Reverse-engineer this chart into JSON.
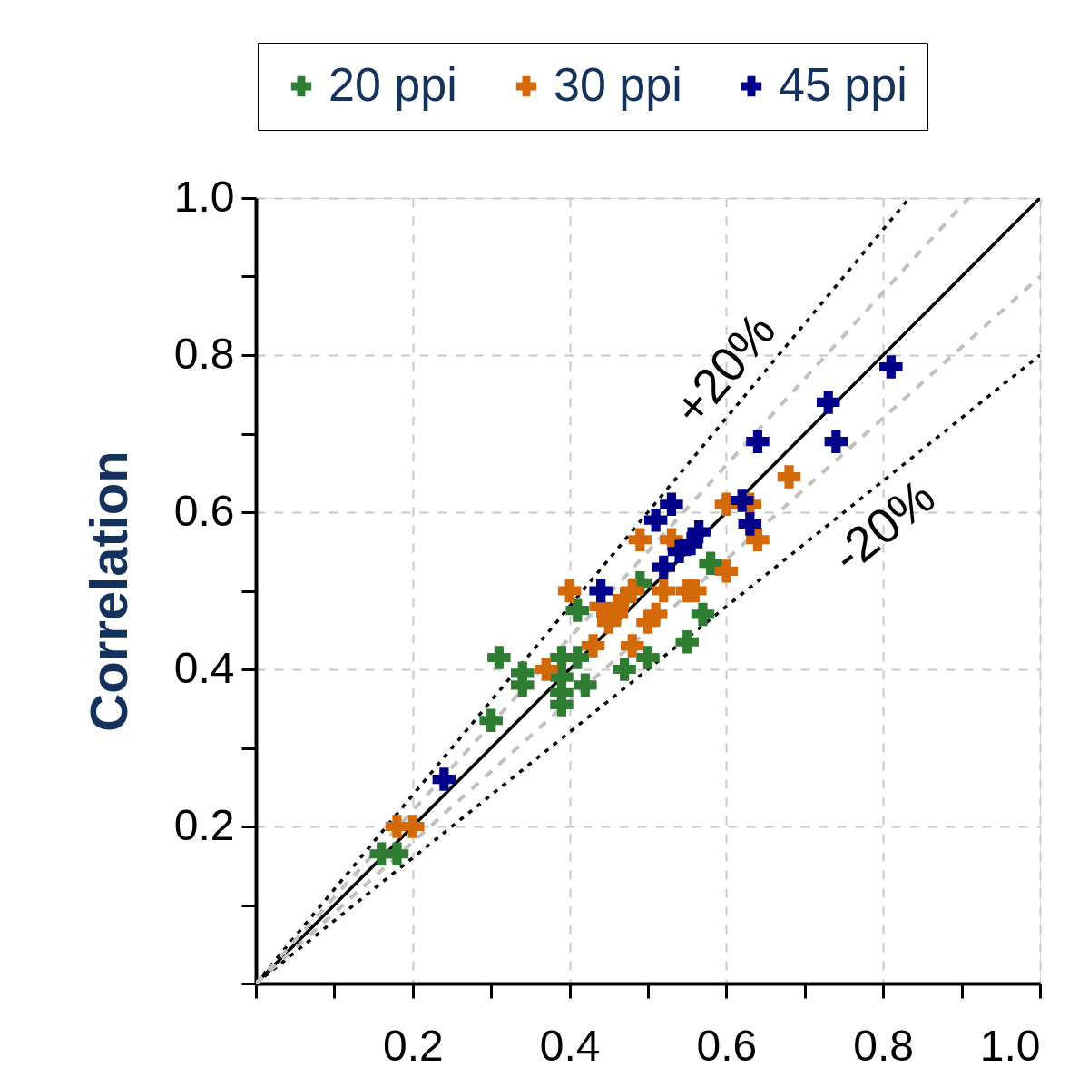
{
  "chart_data": {
    "type": "scatter",
    "ylabel": "Correlation",
    "legend": "top",
    "marker": "cross",
    "grid": true,
    "xlim": [
      0,
      1
    ],
    "ylim": [
      0,
      1
    ],
    "xticks": [
      {
        "value": 0,
        "label": null
      },
      {
        "value": 0.1,
        "label": null
      },
      0.2,
      {
        "value": 0.3,
        "label": null
      },
      0.4,
      {
        "value": 0.5,
        "label": null
      },
      0.6,
      {
        "value": 0.7,
        "label": null
      },
      0.8,
      {
        "value": 0.9,
        "label": null
      },
      {
        "value": 1,
        "label": "1.0"
      }
    ],
    "yticks": [
      {
        "value": 0,
        "label": null
      },
      {
        "value": 0.1,
        "label": null
      },
      0.2,
      {
        "value": 0.3,
        "label": null
      },
      0.4,
      {
        "value": 0.5,
        "label": null
      },
      0.6,
      {
        "value": 0.7,
        "label": null
      },
      0.8,
      {
        "value": 0.9,
        "label": null
      },
      {
        "value": 1,
        "label": "1.0"
      }
    ],
    "series": [
      {
        "name": "20 ppi",
        "color": "#2e7d32",
        "x": [
          0.16,
          0.18,
          0.3,
          0.31,
          0.34,
          0.34,
          0.39,
          0.39,
          0.39,
          0.39,
          0.41,
          0.42,
          0.41,
          0.47,
          0.5,
          0.55,
          0.57,
          0.58,
          0.49
        ],
        "values": [
          0.165,
          0.165,
          0.335,
          0.415,
          0.395,
          0.38,
          0.415,
          0.39,
          0.37,
          0.355,
          0.415,
          0.38,
          0.475,
          0.4,
          0.415,
          0.435,
          0.47,
          0.535,
          0.51
        ]
      },
      {
        "name": "30 ppi",
        "color": "#d4690a",
        "x": [
          0.18,
          0.2,
          0.37,
          0.4,
          0.44,
          0.43,
          0.45,
          0.46,
          0.47,
          0.48,
          0.49,
          0.5,
          0.51,
          0.52,
          0.53,
          0.55,
          0.56,
          0.6,
          0.6,
          0.63,
          0.64,
          0.68,
          0.48
        ],
        "values": [
          0.2,
          0.2,
          0.4,
          0.5,
          0.48,
          0.43,
          0.46,
          0.47,
          0.49,
          0.43,
          0.565,
          0.46,
          0.47,
          0.5,
          0.565,
          0.5,
          0.5,
          0.525,
          0.61,
          0.61,
          0.565,
          0.645,
          0.5
        ]
      },
      {
        "name": "45 ppi",
        "color": "#00008b",
        "x": [
          0.24,
          0.44,
          0.51,
          0.53,
          0.52,
          0.54,
          0.555,
          0.565,
          0.62,
          0.63,
          0.64,
          0.73,
          0.74,
          0.81
        ],
        "values": [
          0.26,
          0.5,
          0.59,
          0.61,
          0.53,
          0.55,
          0.56,
          0.575,
          0.615,
          0.585,
          0.69,
          0.74,
          0.69,
          0.785
        ]
      },
      {
        "type": "line",
        "marker": "none",
        "color": "#000000",
        "line_style": "solid",
        "x": [
          0,
          1
        ],
        "values": [
          0,
          1
        ]
      },
      {
        "type": "line",
        "marker": "none",
        "color": "#000000",
        "line_style": "dotted",
        "x": [
          0,
          0.8333
        ],
        "values": [
          0,
          1
        ]
      },
      {
        "type": "line",
        "marker": "none",
        "color": "#000000",
        "line_style": "dotted",
        "x": [
          0,
          1
        ],
        "values": [
          0,
          0.8
        ]
      },
      {
        "type": "line",
        "marker": "none",
        "color": "#c0c0c0",
        "line_style": "dashed",
        "x": [
          0,
          0.9091
        ],
        "values": [
          0,
          1
        ]
      },
      {
        "type": "line",
        "marker": "none",
        "color": "#c0c0c0",
        "line_style": "dashed",
        "x": [
          0,
          1
        ],
        "values": [
          0,
          0.9
        ]
      }
    ],
    "annotations": [
      "+20%",
      "-20%"
    ]
  }
}
